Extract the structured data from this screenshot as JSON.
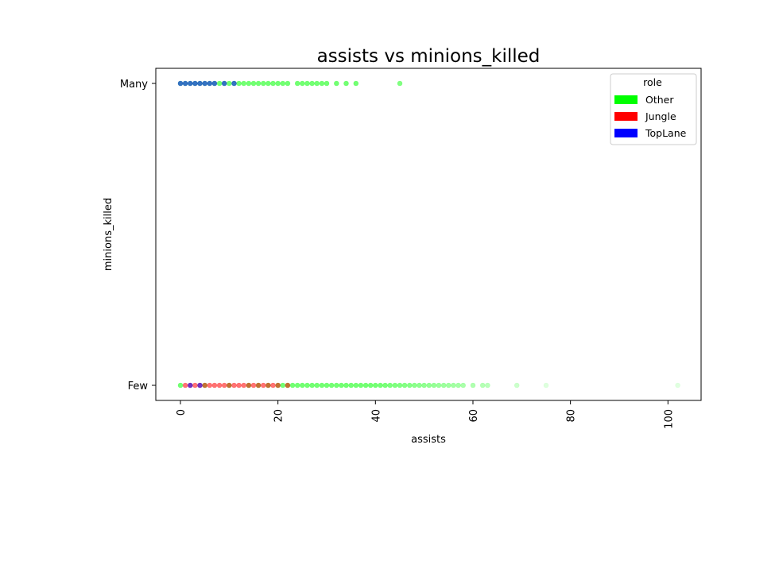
{
  "chart_data": {
    "type": "scatter",
    "title": "assists vs minions_killed",
    "xlabel": "assists",
    "ylabel": "minions_killed",
    "xlim": [
      -5,
      107
    ],
    "x_ticks": [
      0,
      20,
      40,
      60,
      80,
      100
    ],
    "y_categories": [
      "Few",
      "Many"
    ],
    "grid": false,
    "legend": {
      "title": "role",
      "placement": "top-right",
      "entries": [
        {
          "label": "Other",
          "color": "#00ff00"
        },
        {
          "label": "Jungle",
          "color": "#ff0000"
        },
        {
          "label": "TopLane",
          "color": "#0000ff"
        }
      ]
    },
    "series": [
      {
        "name": "Other",
        "color": "#00ff00",
        "points": [
          {
            "x": 0,
            "y": "Many"
          },
          {
            "x": 1,
            "y": "Many"
          },
          {
            "x": 2,
            "y": "Many"
          },
          {
            "x": 3,
            "y": "Many"
          },
          {
            "x": 4,
            "y": "Many"
          },
          {
            "x": 5,
            "y": "Many"
          },
          {
            "x": 6,
            "y": "Many"
          },
          {
            "x": 7,
            "y": "Many"
          },
          {
            "x": 8,
            "y": "Many"
          },
          {
            "x": 9,
            "y": "Many"
          },
          {
            "x": 10,
            "y": "Many"
          },
          {
            "x": 11,
            "y": "Many"
          },
          {
            "x": 12,
            "y": "Many"
          },
          {
            "x": 13,
            "y": "Many"
          },
          {
            "x": 14,
            "y": "Many"
          },
          {
            "x": 15,
            "y": "Many"
          },
          {
            "x": 16,
            "y": "Many"
          },
          {
            "x": 17,
            "y": "Many"
          },
          {
            "x": 18,
            "y": "Many"
          },
          {
            "x": 19,
            "y": "Many"
          },
          {
            "x": 20,
            "y": "Many"
          },
          {
            "x": 21,
            "y": "Many"
          },
          {
            "x": 22,
            "y": "Many"
          },
          {
            "x": 24,
            "y": "Many"
          },
          {
            "x": 25,
            "y": "Many"
          },
          {
            "x": 26,
            "y": "Many"
          },
          {
            "x": 27,
            "y": "Many"
          },
          {
            "x": 28,
            "y": "Many"
          },
          {
            "x": 29,
            "y": "Many"
          },
          {
            "x": 30,
            "y": "Many"
          },
          {
            "x": 32,
            "y": "Many"
          },
          {
            "x": 34,
            "y": "Many"
          },
          {
            "x": 36,
            "y": "Many"
          },
          {
            "x": 45,
            "y": "Many"
          },
          {
            "x": 0,
            "y": "Few"
          },
          {
            "x": 5,
            "y": "Few"
          },
          {
            "x": 10,
            "y": "Few"
          },
          {
            "x": 14,
            "y": "Few"
          },
          {
            "x": 16,
            "y": "Few"
          },
          {
            "x": 18,
            "y": "Few"
          },
          {
            "x": 20,
            "y": "Few"
          },
          {
            "x": 21,
            "y": "Few"
          },
          {
            "x": 22,
            "y": "Few"
          },
          {
            "x": 23,
            "y": "Few"
          },
          {
            "x": 24,
            "y": "Few"
          },
          {
            "x": 25,
            "y": "Few"
          },
          {
            "x": 26,
            "y": "Few"
          },
          {
            "x": 27,
            "y": "Few"
          },
          {
            "x": 28,
            "y": "Few"
          },
          {
            "x": 29,
            "y": "Few"
          },
          {
            "x": 30,
            "y": "Few"
          },
          {
            "x": 31,
            "y": "Few"
          },
          {
            "x": 32,
            "y": "Few"
          },
          {
            "x": 33,
            "y": "Few"
          },
          {
            "x": 34,
            "y": "Few"
          },
          {
            "x": 35,
            "y": "Few"
          },
          {
            "x": 36,
            "y": "Few"
          },
          {
            "x": 37,
            "y": "Few"
          },
          {
            "x": 38,
            "y": "Few"
          },
          {
            "x": 39,
            "y": "Few"
          },
          {
            "x": 40,
            "y": "Few"
          },
          {
            "x": 41,
            "y": "Few"
          },
          {
            "x": 42,
            "y": "Few"
          },
          {
            "x": 43,
            "y": "Few"
          },
          {
            "x": 44,
            "y": "Few"
          },
          {
            "x": 45,
            "y": "Few"
          },
          {
            "x": 46,
            "y": "Few"
          },
          {
            "x": 47,
            "y": "Few"
          },
          {
            "x": 48,
            "y": "Few"
          },
          {
            "x": 49,
            "y": "Few"
          },
          {
            "x": 50,
            "y": "Few"
          },
          {
            "x": 51,
            "y": "Few"
          },
          {
            "x": 52,
            "y": "Few"
          },
          {
            "x": 53,
            "y": "Few"
          },
          {
            "x": 54,
            "y": "Few"
          },
          {
            "x": 55,
            "y": "Few"
          },
          {
            "x": 56,
            "y": "Few"
          },
          {
            "x": 57,
            "y": "Few"
          },
          {
            "x": 58,
            "y": "Few"
          },
          {
            "x": 60,
            "y": "Few"
          },
          {
            "x": 62,
            "y": "Few"
          },
          {
            "x": 63,
            "y": "Few"
          },
          {
            "x": 69,
            "y": "Few"
          },
          {
            "x": 75,
            "y": "Few"
          },
          {
            "x": 102,
            "y": "Few"
          }
        ]
      },
      {
        "name": "Jungle",
        "color": "#ff0000",
        "points": [
          {
            "x": 1,
            "y": "Few"
          },
          {
            "x": 2,
            "y": "Few"
          },
          {
            "x": 3,
            "y": "Few"
          },
          {
            "x": 4,
            "y": "Few"
          },
          {
            "x": 5,
            "y": "Few"
          },
          {
            "x": 6,
            "y": "Few"
          },
          {
            "x": 7,
            "y": "Few"
          },
          {
            "x": 8,
            "y": "Few"
          },
          {
            "x": 9,
            "y": "Few"
          },
          {
            "x": 10,
            "y": "Few"
          },
          {
            "x": 11,
            "y": "Few"
          },
          {
            "x": 12,
            "y": "Few"
          },
          {
            "x": 13,
            "y": "Few"
          },
          {
            "x": 14,
            "y": "Few"
          },
          {
            "x": 15,
            "y": "Few"
          },
          {
            "x": 16,
            "y": "Few"
          },
          {
            "x": 17,
            "y": "Few"
          },
          {
            "x": 18,
            "y": "Few"
          },
          {
            "x": 19,
            "y": "Few"
          },
          {
            "x": 20,
            "y": "Few"
          },
          {
            "x": 22,
            "y": "Few"
          }
        ]
      },
      {
        "name": "TopLane",
        "color": "#0000ff",
        "points": [
          {
            "x": 0,
            "y": "Many"
          },
          {
            "x": 1,
            "y": "Many"
          },
          {
            "x": 2,
            "y": "Many"
          },
          {
            "x": 3,
            "y": "Many"
          },
          {
            "x": 4,
            "y": "Many"
          },
          {
            "x": 5,
            "y": "Many"
          },
          {
            "x": 6,
            "y": "Many"
          },
          {
            "x": 7,
            "y": "Many"
          },
          {
            "x": 9,
            "y": "Many"
          },
          {
            "x": 11,
            "y": "Many"
          },
          {
            "x": 2,
            "y": "Few"
          },
          {
            "x": 4,
            "y": "Few"
          }
        ]
      }
    ]
  }
}
